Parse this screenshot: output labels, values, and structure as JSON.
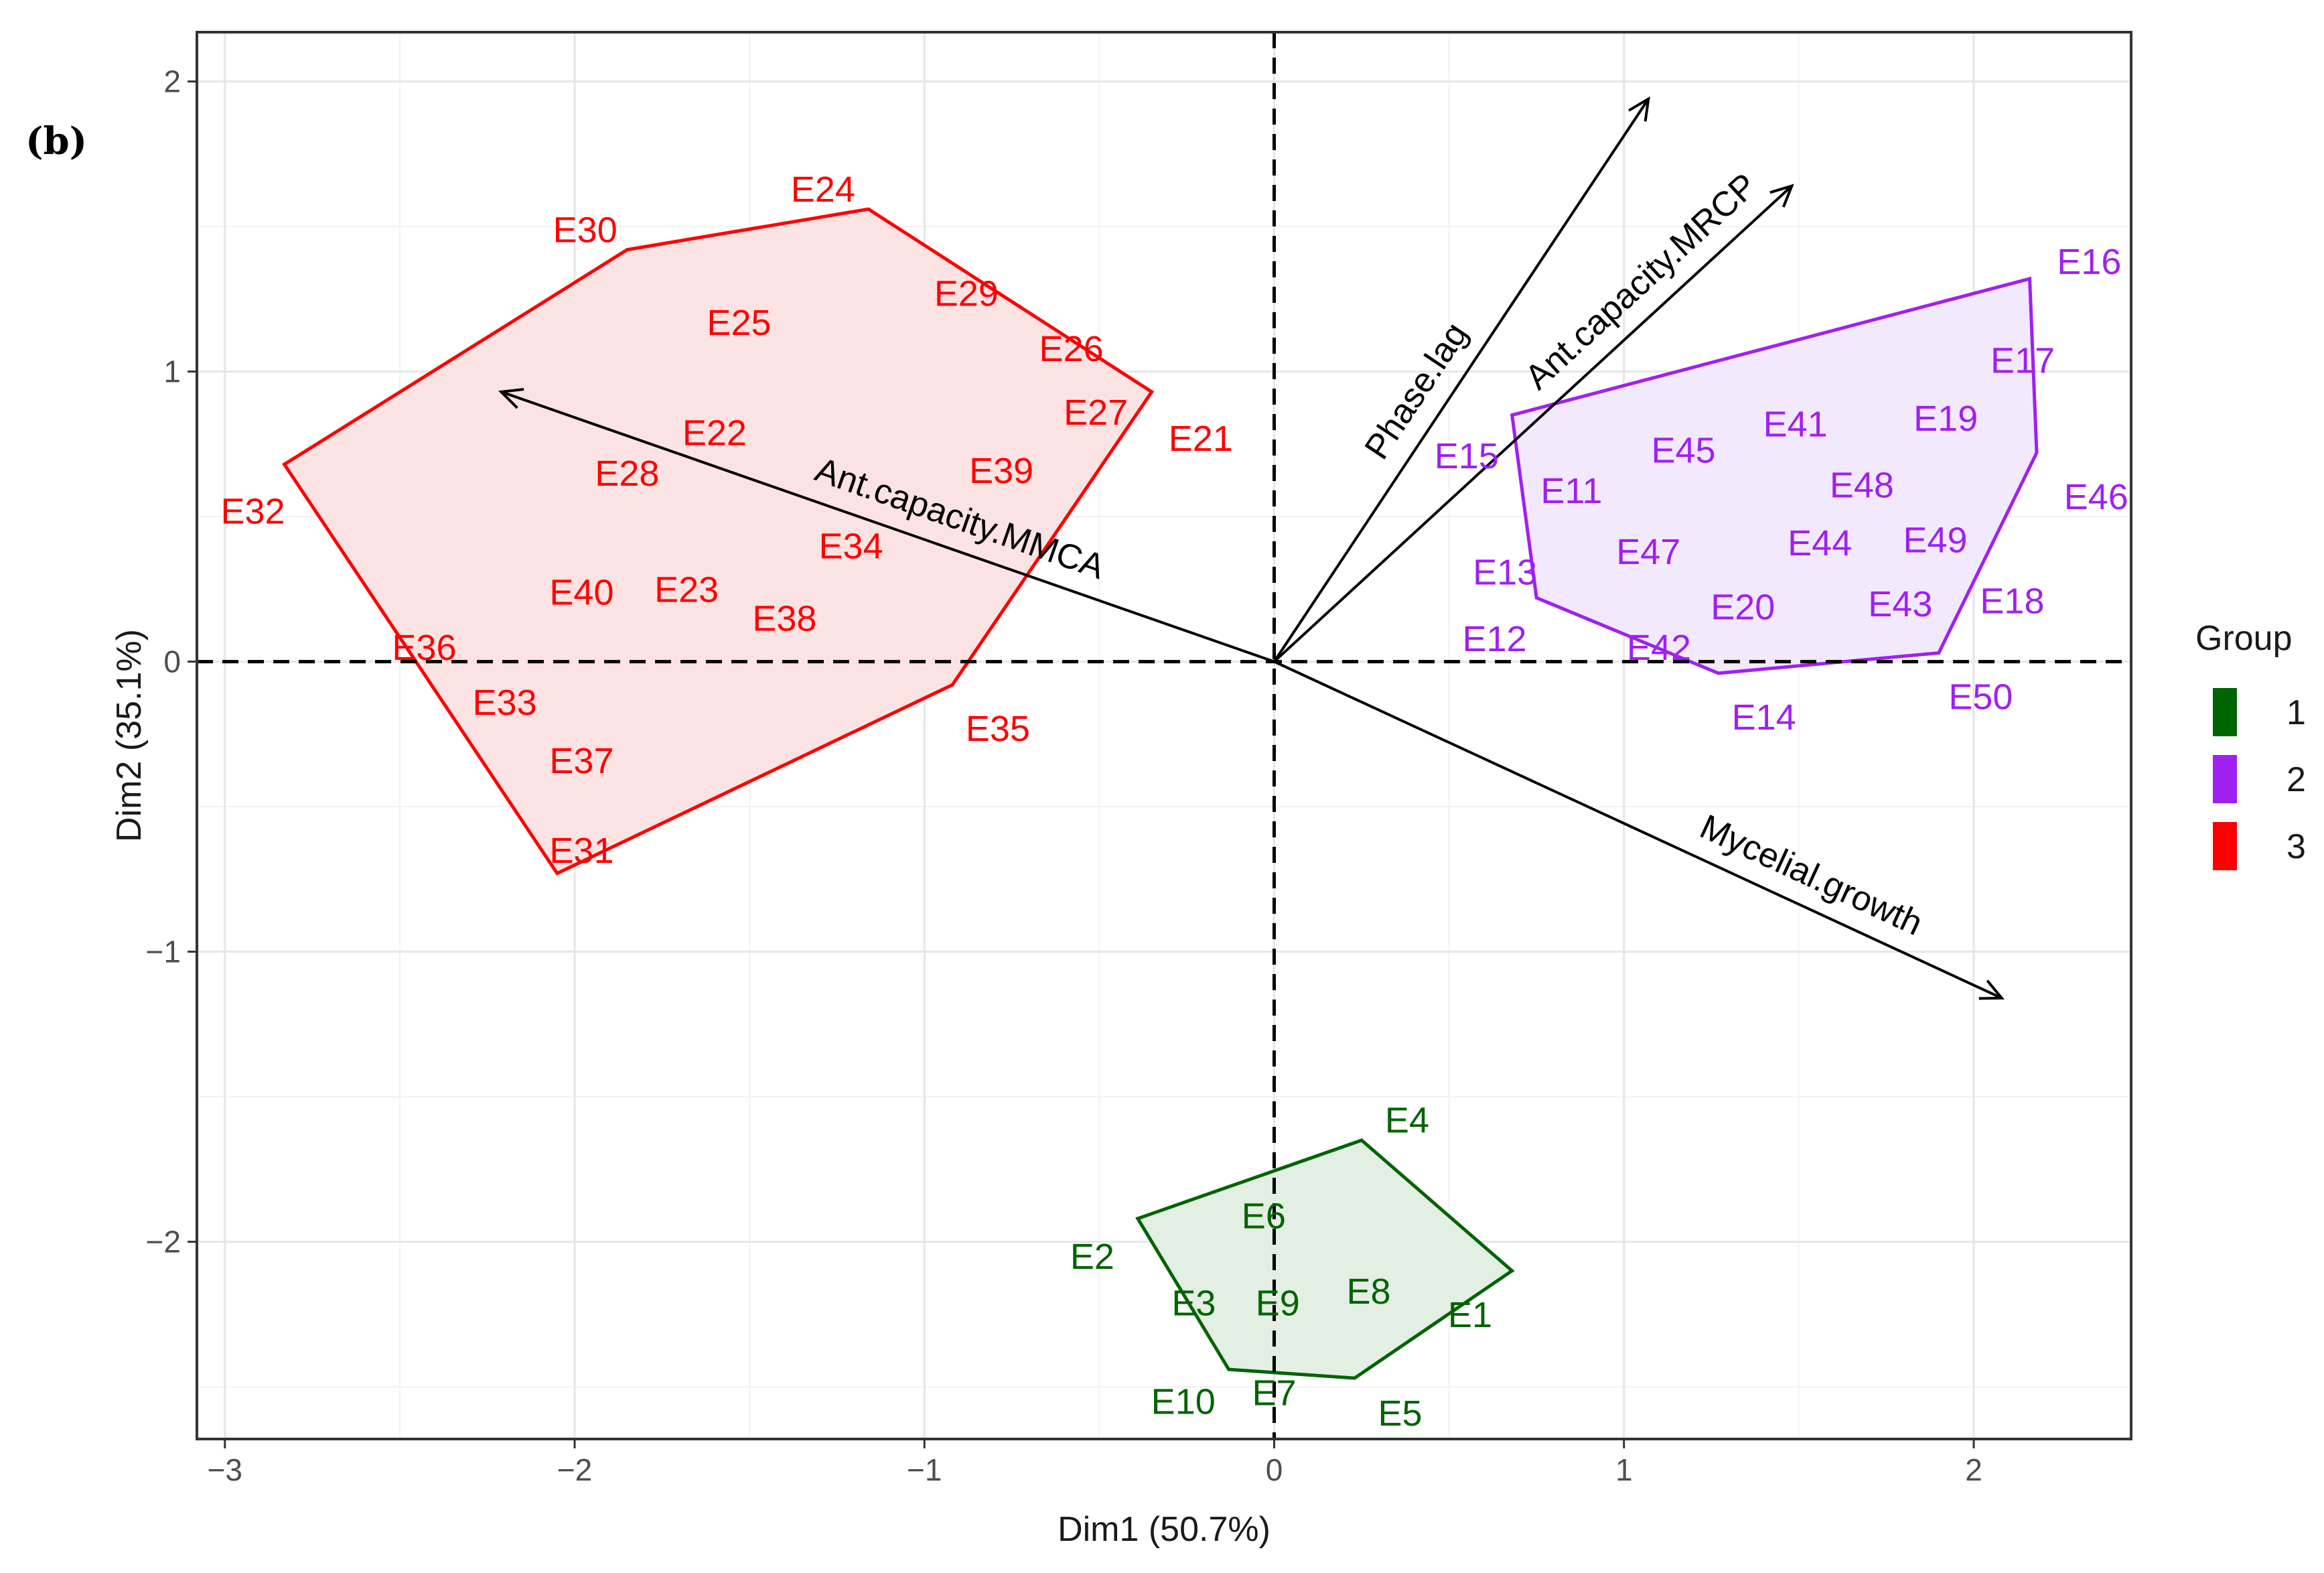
{
  "panel_label": "(b)",
  "chart_data": {
    "type": "scatter",
    "title": "",
    "xlabel": "Dim1 (50.7%)",
    "ylabel": "Dim2 (35.1%)",
    "xlim": [
      -3.08,
      2.45
    ],
    "ylim": [
      -2.68,
      2.17
    ],
    "xticks": [
      -3,
      -2,
      -1,
      0,
      1,
      2
    ],
    "yticks": [
      -2,
      -1,
      0,
      1,
      2
    ],
    "tick_labels_x": [
      "−3",
      "−2",
      "−1",
      "0",
      "1",
      "2"
    ],
    "tick_labels_y": [
      "−2",
      "−1",
      "0",
      "1",
      "2"
    ],
    "grid": true,
    "legend": {
      "title": "Group",
      "position": "right",
      "entries": [
        {
          "label": "1",
          "color": "#006400"
        },
        {
          "label": "2",
          "color": "#A020F0"
        },
        {
          "label": "3",
          "color": "#FF0000"
        }
      ]
    },
    "groups": [
      {
        "name": "1",
        "color": "#006400",
        "fill": "#e3efe3",
        "hull": [
          [
            0.25,
            -1.65
          ],
          [
            0.68,
            -2.1
          ],
          [
            0.23,
            -2.47
          ],
          [
            -0.13,
            -2.44
          ],
          [
            -0.39,
            -1.92
          ]
        ],
        "points": [
          {
            "label": "E1",
            "x": 0.56,
            "y": -2.25
          },
          {
            "label": "E2",
            "x": -0.52,
            "y": -2.05
          },
          {
            "label": "E3",
            "x": -0.23,
            "y": -2.21
          },
          {
            "label": "E4",
            "x": 0.38,
            "y": -1.58
          },
          {
            "label": "E5",
            "x": 0.36,
            "y": -2.59
          },
          {
            "label": "E6",
            "x": -0.03,
            "y": -1.91
          },
          {
            "label": "E7",
            "x": 0.0,
            "y": -2.52
          },
          {
            "label": "E8",
            "x": 0.27,
            "y": -2.17
          },
          {
            "label": "E9",
            "x": 0.01,
            "y": -2.21
          },
          {
            "label": "E10",
            "x": -0.26,
            "y": -2.55
          }
        ]
      },
      {
        "name": "2",
        "color": "#A020F0",
        "fill": "#f3e9fc",
        "hull": [
          [
            0.68,
            0.85
          ],
          [
            2.16,
            1.32
          ],
          [
            2.18,
            0.72
          ],
          [
            1.9,
            0.03
          ],
          [
            1.27,
            -0.04
          ],
          [
            0.75,
            0.22
          ]
        ],
        "points": [
          {
            "label": "E11",
            "x": 0.85,
            "y": 0.59
          },
          {
            "label": "E12",
            "x": 0.63,
            "y": 0.08
          },
          {
            "label": "E13",
            "x": 0.66,
            "y": 0.31
          },
          {
            "label": "E14",
            "x": 1.4,
            "y": -0.19
          },
          {
            "label": "E15",
            "x": 0.55,
            "y": 0.71
          },
          {
            "label": "E16",
            "x": 2.33,
            "y": 1.38
          },
          {
            "label": "E17",
            "x": 2.14,
            "y": 1.04
          },
          {
            "label": "E18",
            "x": 2.11,
            "y": 0.21
          },
          {
            "label": "E19",
            "x": 1.92,
            "y": 0.84
          },
          {
            "label": "E20",
            "x": 1.34,
            "y": 0.19
          },
          {
            "label": "E41",
            "x": 1.49,
            "y": 0.82
          },
          {
            "label": "E42",
            "x": 1.1,
            "y": 0.05
          },
          {
            "label": "E43",
            "x": 1.79,
            "y": 0.2
          },
          {
            "label": "E44",
            "x": 1.56,
            "y": 0.41
          },
          {
            "label": "E45",
            "x": 1.17,
            "y": 0.73
          },
          {
            "label": "E46",
            "x": 2.35,
            "y": 0.57
          },
          {
            "label": "E47",
            "x": 1.07,
            "y": 0.38
          },
          {
            "label": "E48",
            "x": 1.68,
            "y": 0.61
          },
          {
            "label": "E49",
            "x": 1.89,
            "y": 0.42
          },
          {
            "label": "E50",
            "x": 2.02,
            "y": -0.12
          }
        ]
      },
      {
        "name": "3",
        "color": "#FF0000",
        "fill": "#fce3e3",
        "hull": [
          [
            -1.85,
            1.42
          ],
          [
            -1.16,
            1.56
          ],
          [
            -0.35,
            0.93
          ],
          [
            -0.92,
            -0.08
          ],
          [
            -2.05,
            -0.73
          ],
          [
            -2.83,
            0.68
          ]
        ],
        "points": [
          {
            "label": "E21",
            "x": -0.21,
            "y": 0.77
          },
          {
            "label": "E22",
            "x": -1.6,
            "y": 0.79
          },
          {
            "label": "E23",
            "x": -1.68,
            "y": 0.25
          },
          {
            "label": "E24",
            "x": -1.29,
            "y": 1.63
          },
          {
            "label": "E25",
            "x": -1.53,
            "y": 1.17
          },
          {
            "label": "E26",
            "x": -0.58,
            "y": 1.08
          },
          {
            "label": "E27",
            "x": -0.51,
            "y": 0.86
          },
          {
            "label": "E28",
            "x": -1.85,
            "y": 0.65
          },
          {
            "label": "E29",
            "x": -0.88,
            "y": 1.27
          },
          {
            "label": "E30",
            "x": -1.97,
            "y": 1.49
          },
          {
            "label": "E31",
            "x": -1.98,
            "y": -0.65
          },
          {
            "label": "E32",
            "x": -2.92,
            "y": 0.52
          },
          {
            "label": "E33",
            "x": -2.2,
            "y": -0.14
          },
          {
            "label": "E34",
            "x": -1.21,
            "y": 0.4
          },
          {
            "label": "E35",
            "x": -0.79,
            "y": -0.23
          },
          {
            "label": "E36",
            "x": -2.43,
            "y": 0.05
          },
          {
            "label": "E37",
            "x": -1.98,
            "y": -0.34
          },
          {
            "label": "E38",
            "x": -1.4,
            "y": 0.15
          },
          {
            "label": "E39",
            "x": -0.78,
            "y": 0.66
          },
          {
            "label": "E40",
            "x": -1.98,
            "y": 0.24
          }
        ]
      }
    ],
    "vectors": [
      {
        "name": "Phase.lag",
        "x": 1.07,
        "y": 1.94
      },
      {
        "name": "Ant.capacity.MRCP",
        "x": 1.48,
        "y": 1.64
      },
      {
        "name": "Ant.capacity.MMCA",
        "x": -2.21,
        "y": 0.93
      },
      {
        "name": "Mycelial.growth",
        "x": 2.08,
        "y": -1.16
      }
    ]
  }
}
